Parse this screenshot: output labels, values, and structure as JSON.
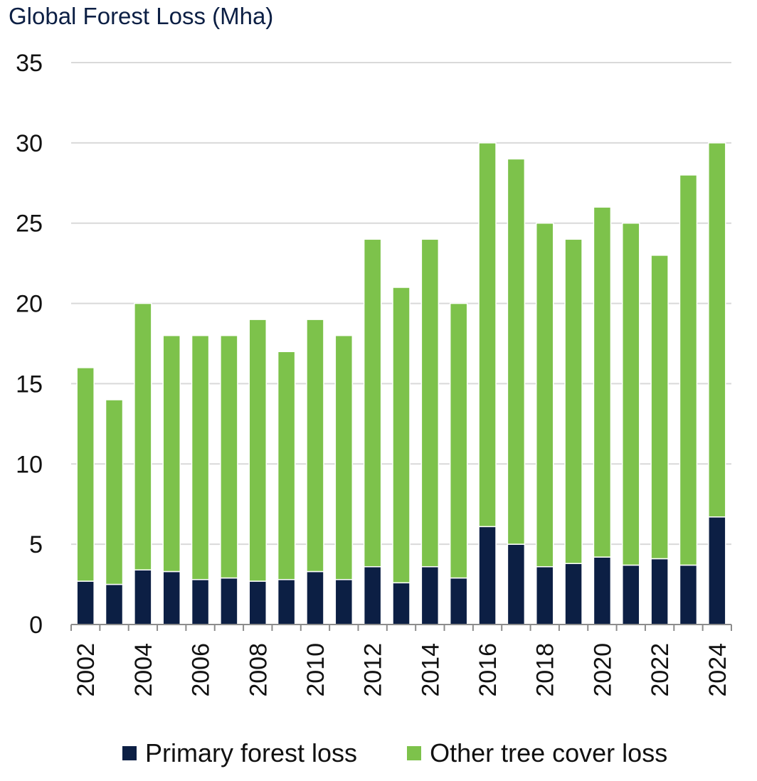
{
  "colors": {
    "primary": "#0c1f44",
    "other": "#7dc24b",
    "grid": "#d9d9d9",
    "axis": "#8c8c8c",
    "title": "#0c1f44"
  },
  "chart_data": {
    "type": "bar",
    "stacked": true,
    "title": "Global Forest Loss (Mha)",
    "xlabel": "",
    "ylabel": "",
    "ylim": [
      0,
      35
    ],
    "yticks": [
      "0",
      "5",
      "10",
      "15",
      "20",
      "25",
      "30",
      "35"
    ],
    "grid": true,
    "legend_position": "bottom",
    "categories": [
      "2002",
      "2003",
      "2004",
      "2005",
      "2006",
      "2007",
      "2008",
      "2009",
      "2010",
      "2011",
      "2012",
      "2013",
      "2014",
      "2015",
      "2016",
      "2017",
      "2018",
      "2019",
      "2020",
      "2021",
      "2022",
      "2023",
      "2024"
    ],
    "xtick_labels": [
      "2002",
      "2004",
      "2006",
      "2008",
      "2010",
      "2012",
      "2014",
      "2016",
      "2018",
      "2020",
      "2022",
      "2024"
    ],
    "series": [
      {
        "name": "Primary forest loss",
        "values": [
          2.7,
          2.5,
          3.4,
          3.3,
          2.8,
          2.9,
          2.7,
          2.8,
          3.3,
          2.8,
          3.6,
          2.6,
          3.6,
          2.9,
          6.1,
          5.0,
          3.6,
          3.8,
          4.2,
          3.7,
          4.1,
          3.7,
          6.7
        ]
      },
      {
        "name": "Other tree cover loss",
        "values": [
          13.3,
          11.5,
          16.6,
          14.7,
          15.2,
          15.1,
          16.3,
          14.2,
          15.7,
          15.2,
          20.4,
          18.4,
          20.4,
          17.1,
          23.9,
          24.0,
          21.4,
          20.2,
          21.8,
          21.3,
          18.9,
          24.3,
          23.3
        ]
      }
    ]
  }
}
